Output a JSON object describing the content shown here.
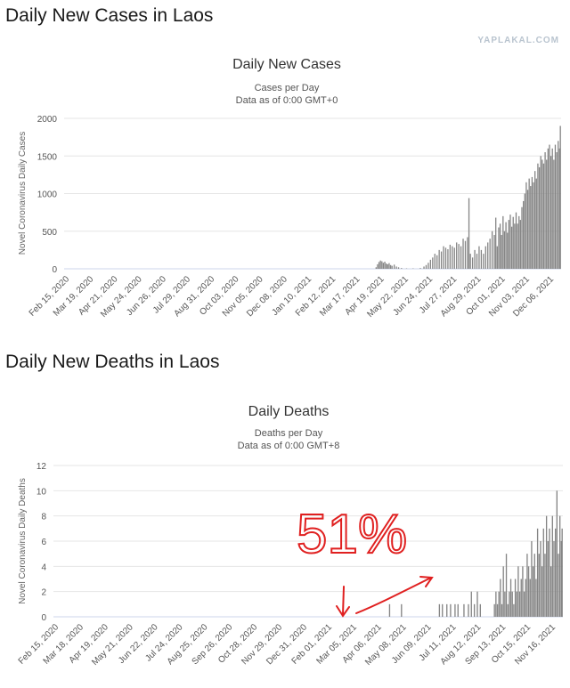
{
  "headings": {
    "cases": "Daily New Cases in Laos",
    "deaths": "Daily New Deaths in Laos"
  },
  "watermark": "YAPLAKAL.COM",
  "annotation": {
    "text": "51%",
    "color": "#e02020"
  },
  "chart_data": [
    {
      "type": "bar",
      "title": "Daily New Cases",
      "subtitle_1": "Cases per Day",
      "subtitle_2": "Data as of 0:00 GMT+0",
      "ylabel": "Novel Coronavirus Daily Cases",
      "xlabel": "",
      "ylim": [
        0,
        2000
      ],
      "yticks": [
        "0",
        "500",
        "1000",
        "1500",
        "2000"
      ],
      "ytick_values": [
        0,
        500,
        1000,
        1500,
        2000
      ],
      "grid": true,
      "bar_color": "#858585",
      "x_start": "2020-02-15",
      "x_end": "2021-12-31",
      "xticks": [
        "Feb 15, 2020",
        "Mar 19, 2020",
        "Apr 21, 2020",
        "May 24, 2020",
        "Jun 26, 2020",
        "Jul 29, 2020",
        "Aug 31, 2020",
        "Oct 03, 2020",
        "Nov 05, 2020",
        "Dec 08, 2020",
        "Jan 10, 2021",
        "Feb 12, 2021",
        "Mar 17, 2021",
        "Apr 19, 2021",
        "May 22, 2021",
        "Jun 24, 2021",
        "Jul 27, 2021",
        "Aug 29, 2021",
        "Oct 01, 2021",
        "Nov 03, 2021",
        "Dec 06, 2021"
      ],
      "series": [
        {
          "points": [
            [
              "2021-04-19",
              0
            ],
            [
              "2021-04-20",
              20
            ],
            [
              "2021-04-22",
              60
            ],
            [
              "2021-04-24",
              90
            ],
            [
              "2021-04-26",
              110
            ],
            [
              "2021-04-28",
              100
            ],
            [
              "2021-04-30",
              80
            ],
            [
              "2021-05-02",
              95
            ],
            [
              "2021-05-04",
              70
            ],
            [
              "2021-05-06",
              60
            ],
            [
              "2021-05-08",
              75
            ],
            [
              "2021-05-10",
              50
            ],
            [
              "2021-05-12",
              40
            ],
            [
              "2021-05-15",
              55
            ],
            [
              "2021-05-18",
              30
            ],
            [
              "2021-05-21",
              20
            ],
            [
              "2021-05-25",
              10
            ],
            [
              "2021-06-01",
              5
            ],
            [
              "2021-06-10",
              5
            ],
            [
              "2021-06-20",
              10
            ],
            [
              "2021-06-25",
              30
            ],
            [
              "2021-06-28",
              50
            ],
            [
              "2021-07-01",
              80
            ],
            [
              "2021-07-04",
              120
            ],
            [
              "2021-07-07",
              150
            ],
            [
              "2021-07-10",
              200
            ],
            [
              "2021-07-13",
              180
            ],
            [
              "2021-07-16",
              250
            ],
            [
              "2021-07-19",
              230
            ],
            [
              "2021-07-22",
              300
            ],
            [
              "2021-07-25",
              280
            ],
            [
              "2021-07-28",
              260
            ],
            [
              "2021-07-31",
              320
            ],
            [
              "2021-08-03",
              300
            ],
            [
              "2021-08-06",
              280
            ],
            [
              "2021-08-09",
              350
            ],
            [
              "2021-08-12",
              330
            ],
            [
              "2021-08-15",
              300
            ],
            [
              "2021-08-18",
              400
            ],
            [
              "2021-08-21",
              370
            ],
            [
              "2021-08-24",
              420
            ],
            [
              "2021-08-26",
              940
            ],
            [
              "2021-08-28",
              200
            ],
            [
              "2021-08-31",
              150
            ],
            [
              "2021-09-03",
              250
            ],
            [
              "2021-09-06",
              200
            ],
            [
              "2021-09-09",
              300
            ],
            [
              "2021-09-12",
              250
            ],
            [
              "2021-09-15",
              200
            ],
            [
              "2021-09-18",
              300
            ],
            [
              "2021-09-21",
              350
            ],
            [
              "2021-09-24",
              400
            ],
            [
              "2021-09-27",
              500
            ],
            [
              "2021-09-30",
              450
            ],
            [
              "2021-10-02",
              680
            ],
            [
              "2021-10-04",
              300
            ],
            [
              "2021-10-06",
              550
            ],
            [
              "2021-10-08",
              600
            ],
            [
              "2021-10-10",
              450
            ],
            [
              "2021-10-12",
              700
            ],
            [
              "2021-10-14",
              500
            ],
            [
              "2021-10-16",
              620
            ],
            [
              "2021-10-18",
              480
            ],
            [
              "2021-10-20",
              650
            ],
            [
              "2021-10-22",
              720
            ],
            [
              "2021-10-24",
              560
            ],
            [
              "2021-10-26",
              690
            ],
            [
              "2021-10-28",
              600
            ],
            [
              "2021-10-30",
              750
            ],
            [
              "2021-11-01",
              600
            ],
            [
              "2021-11-03",
              700
            ],
            [
              "2021-11-05",
              650
            ],
            [
              "2021-11-07",
              820
            ],
            [
              "2021-11-09",
              900
            ],
            [
              "2021-11-11",
              1000
            ],
            [
              "2021-11-13",
              1150
            ],
            [
              "2021-11-15",
              1050
            ],
            [
              "2021-11-17",
              1200
            ],
            [
              "2021-11-19",
              1100
            ],
            [
              "2021-11-21",
              1220
            ],
            [
              "2021-11-23",
              1150
            ],
            [
              "2021-11-25",
              1300
            ],
            [
              "2021-11-27",
              1200
            ],
            [
              "2021-11-29",
              1400
            ],
            [
              "2021-12-01",
              1350
            ],
            [
              "2021-12-03",
              1500
            ],
            [
              "2021-12-05",
              1450
            ],
            [
              "2021-12-07",
              1400
            ],
            [
              "2021-12-09",
              1550
            ],
            [
              "2021-12-11",
              1450
            ],
            [
              "2021-12-13",
              1600
            ],
            [
              "2021-12-15",
              1650
            ],
            [
              "2021-12-17",
              1500
            ],
            [
              "2021-12-19",
              1600
            ],
            [
              "2021-12-21",
              1450
            ],
            [
              "2021-12-23",
              1650
            ],
            [
              "2021-12-25",
              1550
            ],
            [
              "2021-12-27",
              1700
            ],
            [
              "2021-12-29",
              1600
            ],
            [
              "2021-12-30",
              1900
            ]
          ]
        }
      ]
    },
    {
      "type": "bar",
      "title": "Daily Deaths",
      "subtitle_1": "Deaths per Day",
      "subtitle_2": "Data as of 0:00 GMT+8",
      "ylabel": "Novel Coronavirus Daily Deaths",
      "xlabel": "",
      "ylim": [
        0,
        12
      ],
      "yticks": [
        "0",
        "2",
        "4",
        "6",
        "8",
        "10",
        "12"
      ],
      "ytick_values": [
        0,
        2,
        4,
        6,
        8,
        10,
        12
      ],
      "grid": true,
      "bar_color": "#858585",
      "x_start": "2020-02-15",
      "x_end": "2021-12-31",
      "xticks": [
        "Feb 15, 2020",
        "Mar 18, 2020",
        "Apr 19, 2020",
        "May 21, 2020",
        "Jun 22, 2020",
        "Jul 24, 2020",
        "Aug 25, 2020",
        "Sep 26, 2020",
        "Oct 28, 2020",
        "Nov 29, 2020",
        "Dec 31, 2020",
        "Feb 01, 2021",
        "Mar 05, 2021",
        "Apr 06, 2021",
        "May 08, 2021",
        "Jun 09, 2021",
        "Jul 11, 2021",
        "Aug 12, 2021",
        "Sep 13, 2021",
        "Oct 15, 2021",
        "Nov 16, 2021"
      ],
      "series": [
        {
          "points": [
            [
              "2021-05-12",
              1
            ],
            [
              "2021-05-28",
              1
            ],
            [
              "2021-07-18",
              1
            ],
            [
              "2021-07-22",
              1
            ],
            [
              "2021-07-28",
              1
            ],
            [
              "2021-08-02",
              1
            ],
            [
              "2021-08-08",
              1
            ],
            [
              "2021-08-12",
              1
            ],
            [
              "2021-08-20",
              1
            ],
            [
              "2021-08-26",
              1
            ],
            [
              "2021-08-30",
              2
            ],
            [
              "2021-09-03",
              1
            ],
            [
              "2021-09-07",
              2
            ],
            [
              "2021-09-11",
              1
            ],
            [
              "2021-09-30",
              1
            ],
            [
              "2021-10-02",
              2
            ],
            [
              "2021-10-04",
              1
            ],
            [
              "2021-10-06",
              2
            ],
            [
              "2021-10-08",
              3
            ],
            [
              "2021-10-10",
              1
            ],
            [
              "2021-10-12",
              4
            ],
            [
              "2021-10-14",
              2
            ],
            [
              "2021-10-16",
              5
            ],
            [
              "2021-10-18",
              1
            ],
            [
              "2021-10-20",
              2
            ],
            [
              "2021-10-22",
              3
            ],
            [
              "2021-10-24",
              2
            ],
            [
              "2021-10-26",
              1
            ],
            [
              "2021-10-28",
              3
            ],
            [
              "2021-10-30",
              2
            ],
            [
              "2021-11-01",
              4
            ],
            [
              "2021-11-03",
              2
            ],
            [
              "2021-11-05",
              3
            ],
            [
              "2021-11-07",
              4
            ],
            [
              "2021-11-09",
              2
            ],
            [
              "2021-11-11",
              3
            ],
            [
              "2021-11-13",
              5
            ],
            [
              "2021-11-15",
              4
            ],
            [
              "2021-11-17",
              3
            ],
            [
              "2021-11-19",
              6
            ],
            [
              "2021-11-21",
              4
            ],
            [
              "2021-11-23",
              5
            ],
            [
              "2021-11-25",
              3
            ],
            [
              "2021-11-27",
              7
            ],
            [
              "2021-11-29",
              5
            ],
            [
              "2021-12-01",
              6
            ],
            [
              "2021-12-03",
              4
            ],
            [
              "2021-12-05",
              7
            ],
            [
              "2021-12-07",
              5
            ],
            [
              "2021-12-09",
              8
            ],
            [
              "2021-12-11",
              6
            ],
            [
              "2021-12-13",
              7
            ],
            [
              "2021-12-15",
              4
            ],
            [
              "2021-12-17",
              8
            ],
            [
              "2021-12-19",
              6
            ],
            [
              "2021-12-21",
              7
            ],
            [
              "2021-12-23",
              10
            ],
            [
              "2021-12-25",
              5
            ],
            [
              "2021-12-27",
              8
            ],
            [
              "2021-12-29",
              6
            ],
            [
              "2021-12-30",
              7
            ]
          ]
        }
      ]
    }
  ]
}
